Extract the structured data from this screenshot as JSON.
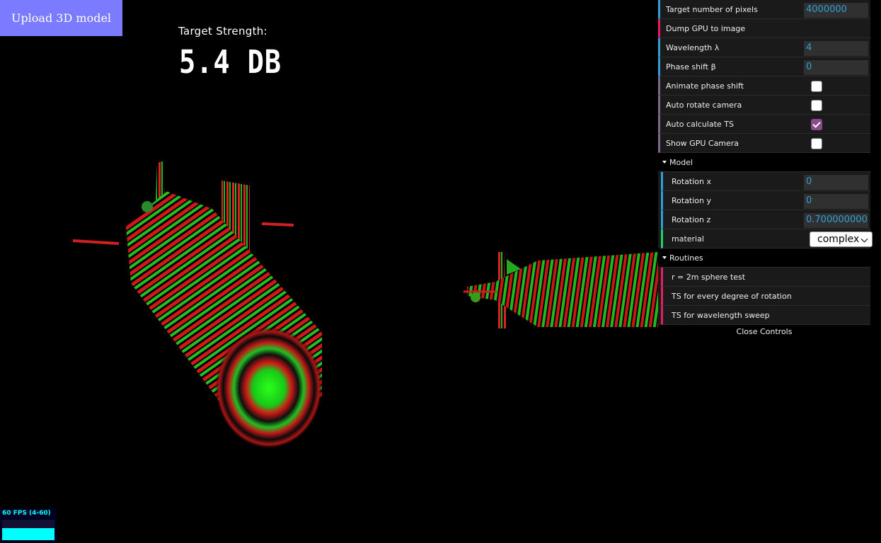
{
  "upload_button": "Upload 3D model",
  "target_strength": {
    "label": "Target Strength:",
    "value": "5.4 DB"
  },
  "gui": {
    "rows": {
      "target_pixels": {
        "label": "Target number of pixels",
        "value": "4000000"
      },
      "dump_gpu": {
        "label": "Dump GPU to image"
      },
      "wavelength": {
        "label": "Wavelength λ",
        "value": "4"
      },
      "phase_shift": {
        "label": "Phase shift β",
        "value": "0"
      },
      "animate_phase": {
        "label": "Animate phase shift",
        "checked": false
      },
      "auto_rotate": {
        "label": "Auto rotate camera",
        "checked": false
      },
      "auto_ts": {
        "label": "Auto calculate TS",
        "checked": true
      },
      "show_gpu_camera": {
        "label": "Show GPU Camera",
        "checked": false
      }
    },
    "model": {
      "title": "Model",
      "rotation_x": {
        "label": "Rotation x",
        "value": "0"
      },
      "rotation_y": {
        "label": "Rotation y",
        "value": "0"
      },
      "rotation_z": {
        "label": "Rotation z",
        "value": "0.700000000"
      },
      "material": {
        "label": "material",
        "value": "complex"
      }
    },
    "routines": {
      "title": "Routines",
      "sphere_test": "r = 2m sphere test",
      "ts_rotation": "TS for every degree of rotation",
      "ts_wavelength": "TS for wavelength sweep"
    },
    "close": "Close Controls"
  },
  "stats": {
    "fps": "60 FPS (4-60)"
  },
  "colors": {
    "accent_number": "#2fa1d6",
    "accent_function": "#e61d5f",
    "accent_boolean": "#806787",
    "accent_string": "#1ed36f",
    "upload_bg": "#7b7bff"
  }
}
